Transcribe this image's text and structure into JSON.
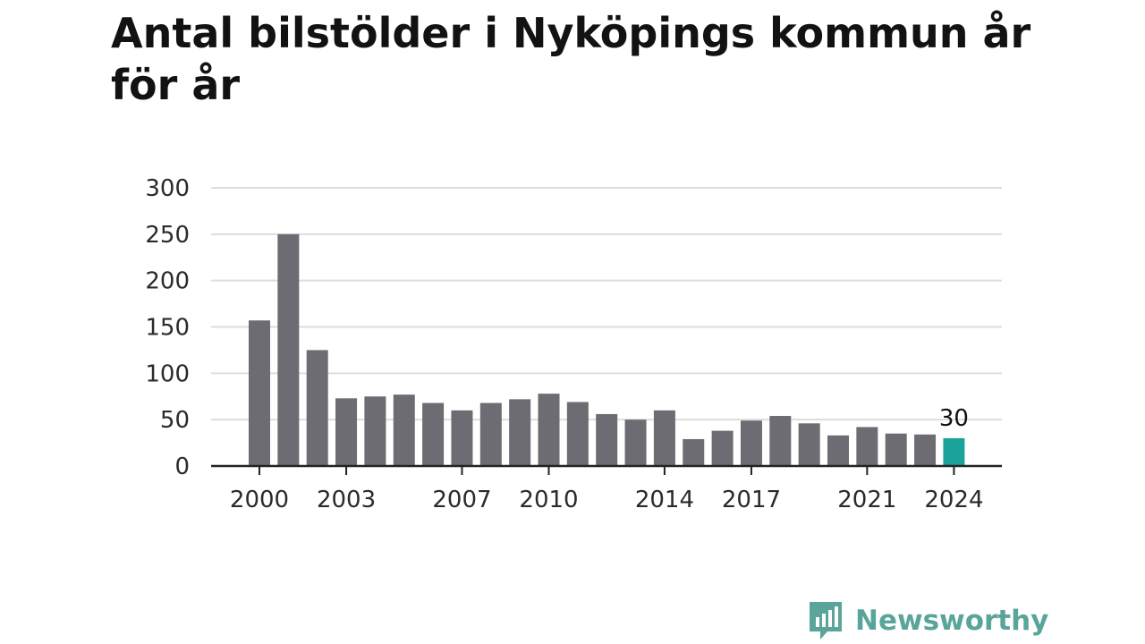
{
  "title": "Antal bilstölder i Nyköpings kommun år för år",
  "colors": {
    "bar": "#6d6c72",
    "highlight": "#1aa39a",
    "grid": "#dddddd",
    "axis": "#222222",
    "brand": "#5aa59a"
  },
  "logo": {
    "text": "Newsworthy",
    "icon": "newsworthy-logo-icon"
  },
  "chart_data": {
    "type": "bar",
    "title": "Antal bilstölder i Nyköpings kommun år för år",
    "xlabel": "",
    "ylabel": "",
    "grid": true,
    "ylim": [
      0,
      300
    ],
    "yticks": [
      0,
      50,
      100,
      150,
      200,
      250,
      300
    ],
    "xticks": [
      "2000",
      "2003",
      "2007",
      "2010",
      "2014",
      "2017",
      "2021",
      "2024"
    ],
    "categories": [
      "2000",
      "2001",
      "2002",
      "2003",
      "2004",
      "2005",
      "2006",
      "2007",
      "2008",
      "2009",
      "2010",
      "2011",
      "2012",
      "2013",
      "2014",
      "2015",
      "2016",
      "2017",
      "2018",
      "2019",
      "2020",
      "2021",
      "2022",
      "2023",
      "2024"
    ],
    "values": [
      157,
      250,
      125,
      73,
      75,
      77,
      68,
      60,
      68,
      72,
      78,
      69,
      56,
      50,
      60,
      29,
      38,
      49,
      54,
      46,
      33,
      42,
      35,
      34,
      30
    ],
    "highlight_category": "2024",
    "data_labels": [
      {
        "category": "2024",
        "text": "30"
      }
    ]
  }
}
